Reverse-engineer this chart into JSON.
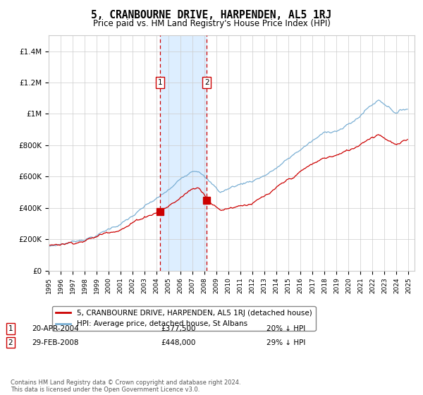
{
  "title": "5, CRANBOURNE DRIVE, HARPENDEN, AL5 1RJ",
  "subtitle": "Price paid vs. HM Land Registry's House Price Index (HPI)",
  "legend_line1": "5, CRANBOURNE DRIVE, HARPENDEN, AL5 1RJ (detached house)",
  "legend_line2": "HPI: Average price, detached house, St Albans",
  "annotation1_date": "20-APR-2004",
  "annotation1_price": "£377,500",
  "annotation1_hpi": "20% ↓ HPI",
  "annotation1_year": 2004.29,
  "annotation1_value": 377500,
  "annotation2_date": "29-FEB-2008",
  "annotation2_price": "£448,000",
  "annotation2_hpi": "29% ↓ HPI",
  "annotation2_year": 2008.17,
  "annotation2_value": 448000,
  "red_color": "#cc0000",
  "blue_color": "#7aafd4",
  "shade_color": "#ddeeff",
  "grid_color": "#cccccc",
  "ylim_min": 0,
  "ylim_max": 1500000,
  "yticks": [
    0,
    200000,
    400000,
    600000,
    800000,
    1000000,
    1200000,
    1400000
  ],
  "ytick_labels": [
    "£0",
    "£200K",
    "£400K",
    "£600K",
    "£800K",
    "£1M",
    "£1.2M",
    "£1.4M"
  ],
  "xmin": 1995,
  "xmax": 2025.5,
  "footer": "Contains HM Land Registry data © Crown copyright and database right 2024.\nThis data is licensed under the Open Government Licence v3.0."
}
